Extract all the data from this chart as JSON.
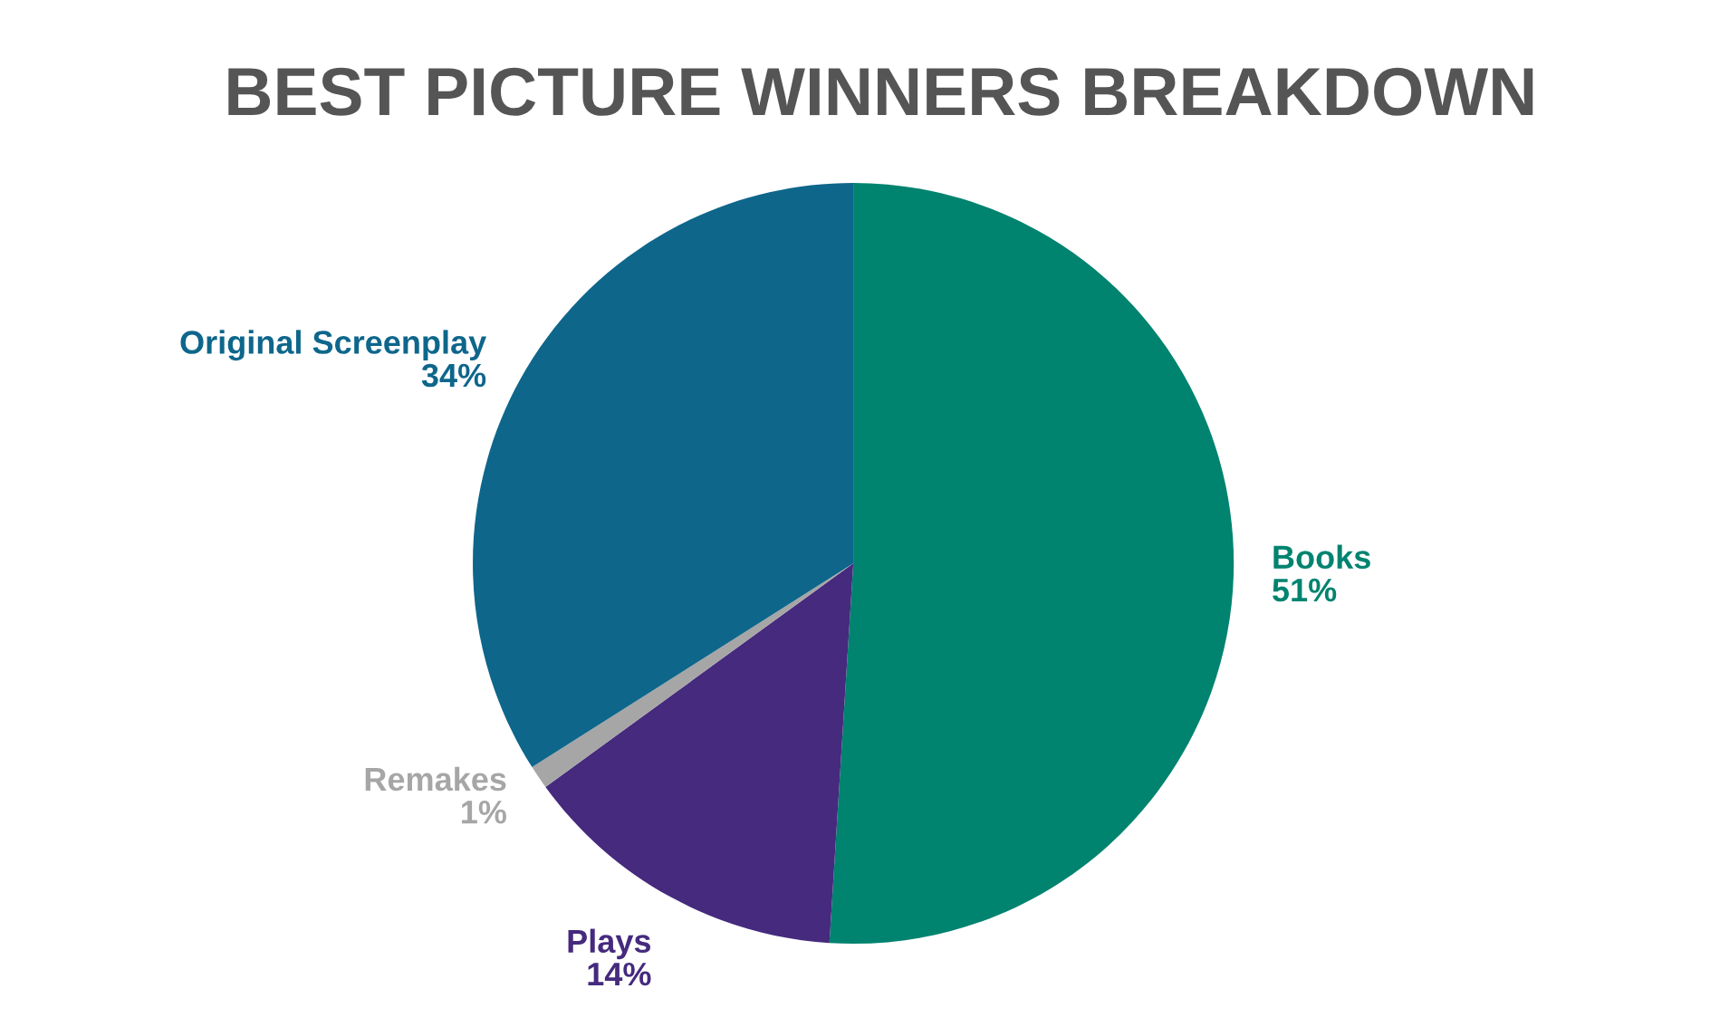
{
  "chart_data": {
    "type": "pie",
    "title": "BEST PICTURE WINNERS BREAKDOWN",
    "categories": [
      "Books",
      "Plays",
      "Remakes",
      "Original Screenplay"
    ],
    "values": [
      51,
      14,
      1,
      34
    ],
    "value_labels": [
      "51%",
      "14%",
      "1%",
      "34%"
    ],
    "colors": [
      "#00836f",
      "#452a7e",
      "#a6a6a6",
      "#0e668b"
    ],
    "legend": false
  }
}
